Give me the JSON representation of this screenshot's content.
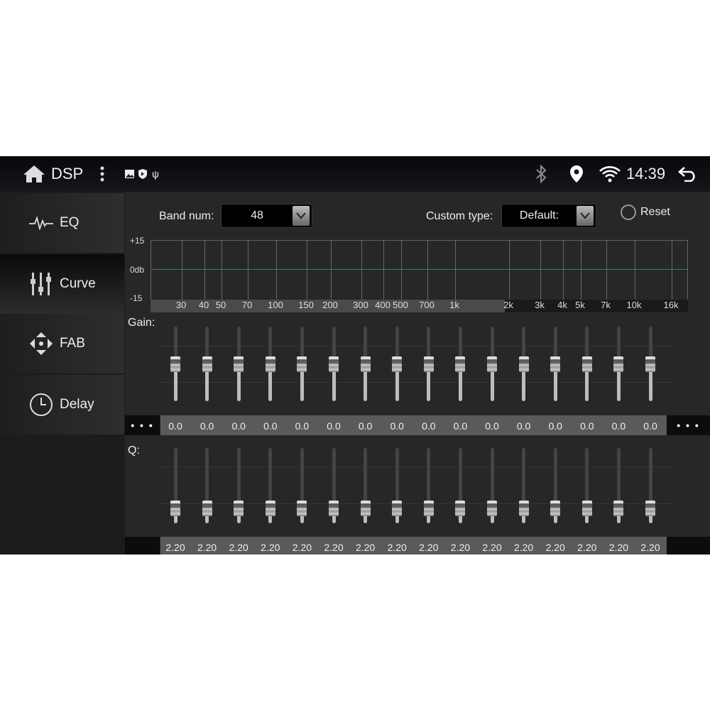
{
  "status_bar": {
    "title": "DSP",
    "time": "14:39",
    "icons": [
      "home-icon",
      "more-vert-icon",
      "image-icon",
      "shield-play-icon",
      "usb-icon",
      "bluetooth-icon",
      "location-icon",
      "wifi-icon",
      "back-icon"
    ]
  },
  "sidebar": {
    "items": [
      {
        "label": "EQ",
        "icon": "waveform-icon"
      },
      {
        "label": "Curve",
        "icon": "sliders-icon",
        "selected": true
      },
      {
        "label": "FAB",
        "icon": "fader-balance-icon"
      },
      {
        "label": "Delay",
        "icon": "clock-icon"
      }
    ]
  },
  "controls": {
    "band_num_label": "Band num:",
    "band_num_value": "48",
    "custom_type_label": "Custom type:",
    "custom_type_value": "Default:",
    "reset_label": "Reset"
  },
  "graph": {
    "y_ticks": [
      "+15",
      "0db",
      "-15"
    ],
    "x_ticks": [
      "30",
      "40",
      "50",
      "70",
      "100",
      "150",
      "200",
      "300",
      "400",
      "500",
      "700",
      "1k",
      "2k",
      "3k",
      "4k",
      "5k",
      "7k",
      "10k",
      "16k"
    ],
    "accent": "#2c7c86"
  },
  "gain": {
    "label": "Gain:",
    "more": "• • •",
    "values": [
      "0.0",
      "0.0",
      "0.0",
      "0.0",
      "0.0",
      "0.0",
      "0.0",
      "0.0",
      "0.0",
      "0.0",
      "0.0",
      "0.0",
      "0.0",
      "0.0",
      "0.0",
      "0.0"
    ],
    "range": [
      -15,
      15
    ]
  },
  "q": {
    "label": "Q:",
    "values": [
      "2.20",
      "2.20",
      "2.20",
      "2.20",
      "2.20",
      "2.20",
      "2.20",
      "2.20",
      "2.20",
      "2.20",
      "2.20",
      "2.20",
      "2.20",
      "2.20",
      "2.20",
      "2.20"
    ]
  }
}
